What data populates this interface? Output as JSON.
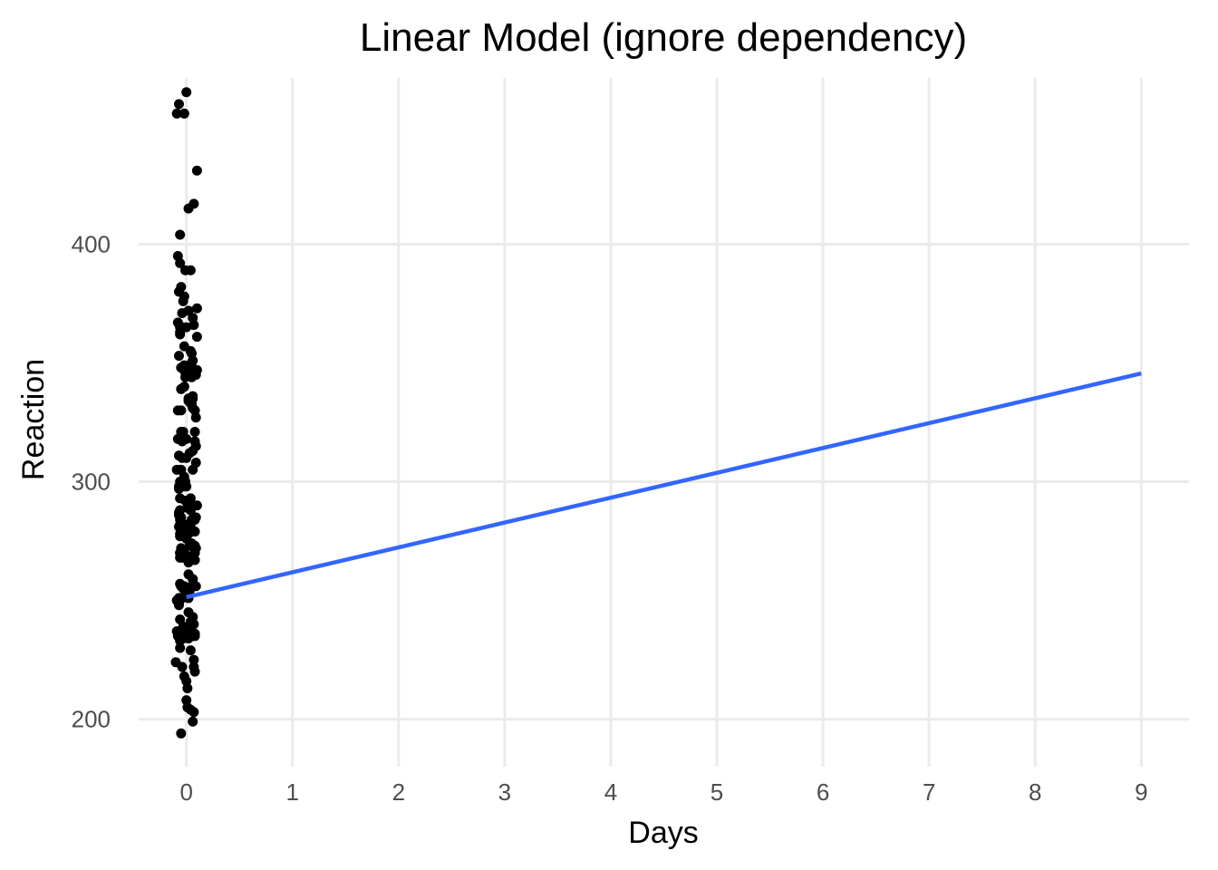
{
  "chart_data": {
    "type": "scatter",
    "title": "Linear Model (ignore dependency)",
    "xlabel": "Days",
    "ylabel": "Reaction",
    "xlim": [
      -0.45,
      9.45
    ],
    "ylim": [
      180,
      470
    ],
    "x_ticks": [
      0,
      1,
      2,
      3,
      4,
      5,
      6,
      7,
      8,
      9
    ],
    "y_ticks": [
      200,
      300,
      400
    ],
    "grid": true,
    "legend": "none",
    "colors": {
      "points": "#000000",
      "fit_line": "#3366ff",
      "grid": "#ebebeb"
    },
    "series": [
      {
        "type": "points",
        "points": [
          [
            -0.09,
            250
          ],
          [
            -0.07,
            249
          ],
          [
            -0.06,
            270
          ],
          [
            -0.08,
            235
          ],
          [
            -0.04,
            222
          ],
          [
            0.0,
            269
          ],
          [
            0.02,
            266
          ],
          [
            0.04,
            241
          ],
          [
            0.05,
            256
          ],
          [
            0.03,
            312
          ],
          [
            0.04,
            288
          ],
          [
            0.06,
            284
          ],
          [
            0.07,
            225
          ],
          [
            0.07,
            222
          ],
          [
            0.09,
            272
          ],
          [
            0.08,
            236
          ],
          [
            0.06,
            199
          ],
          [
            0.08,
            321
          ],
          [
            -0.06,
            300
          ],
          [
            -0.06,
            268
          ],
          [
            -0.05,
            285
          ],
          [
            -0.06,
            242
          ],
          [
            -0.06,
            230
          ],
          [
            -0.01,
            300
          ],
          [
            0.0,
            298
          ],
          [
            0.0,
            276
          ],
          [
            0.01,
            289
          ],
          [
            0.02,
            234
          ],
          [
            0.01,
            205
          ],
          [
            -0.05,
            194
          ],
          [
            0.05,
            273
          ],
          [
            0.08,
            273
          ],
          [
            0.06,
            243
          ],
          [
            0.06,
            259
          ],
          [
            0.05,
            274
          ],
          [
            0.06,
            313
          ],
          [
            -0.06,
            277
          ],
          [
            -0.06,
            257
          ],
          [
            -0.04,
            298
          ],
          [
            -0.04,
            251
          ],
          [
            -0.03,
            239
          ],
          [
            -0.03,
            234
          ],
          [
            -0.02,
            302
          ],
          [
            -0.02,
            256
          ],
          [
            -0.01,
            292
          ],
          [
            0.03,
            254
          ],
          [
            0.03,
            273
          ],
          [
            0.04,
            239
          ],
          [
            0.06,
            243
          ],
          [
            0.08,
            270
          ],
          [
            0.08,
            284
          ],
          [
            0.07,
            203
          ],
          [
            0.09,
            327
          ],
          [
            -0.06,
            278
          ],
          [
            -0.07,
            311
          ],
          [
            -0.06,
            282
          ],
          [
            -0.06,
            233
          ],
          [
            -0.05,
            300
          ],
          [
            -0.05,
            321
          ],
          [
            -0.05,
            319
          ],
          [
            -0.04,
            310
          ],
          [
            -0.03,
            255
          ],
          [
            -0.03,
            271
          ],
          [
            -0.01,
            346
          ],
          [
            -0.02,
            347
          ],
          [
            0.0,
            255
          ],
          [
            0.02,
            278
          ],
          [
            0.01,
            282
          ],
          [
            0.04,
            204
          ],
          [
            0.07,
            240
          ],
          [
            0.09,
            256
          ],
          [
            0.09,
            285
          ],
          [
            -0.07,
            251
          ],
          [
            -0.07,
            297
          ],
          [
            -0.07,
            287
          ],
          [
            -0.07,
            286
          ],
          [
            -0.05,
            272
          ],
          [
            -0.04,
            268
          ],
          [
            -0.03,
            269
          ],
          [
            -0.02,
            349
          ],
          [
            -0.02,
            357
          ],
          [
            0.0,
            318
          ],
          [
            0.0,
            208
          ],
          [
            0.02,
            251
          ],
          [
            0.04,
            229
          ],
          [
            0.04,
            279
          ],
          [
            0.07,
            366
          ],
          [
            0.08,
            279
          ],
          [
            0.08,
            317
          ],
          [
            0.09,
            315
          ],
          [
            -0.07,
            353
          ],
          [
            -0.08,
            330
          ],
          [
            -0.06,
            270
          ],
          [
            -0.06,
            392
          ],
          [
            -0.05,
            339
          ],
          [
            -0.04,
            317
          ],
          [
            -0.02,
            298
          ],
          [
            -0.01,
            344
          ],
          [
            0.0,
            310
          ],
          [
            0.0,
            216
          ],
          [
            0.02,
            415
          ],
          [
            0.03,
            255
          ],
          [
            0.04,
            293
          ],
          [
            0.05,
            284
          ],
          [
            0.06,
            305
          ],
          [
            0.08,
            220
          ],
          [
            0.08,
            330
          ],
          [
            -0.06,
            284
          ],
          [
            -0.07,
            380
          ],
          [
            -0.07,
            298
          ],
          [
            -0.07,
            281
          ],
          [
            -0.06,
            305
          ],
          [
            -0.06,
            288
          ],
          [
            -0.06,
            404
          ],
          [
            -0.05,
            382
          ],
          [
            -0.03,
            280
          ],
          [
            -0.02,
            455
          ],
          [
            0.01,
            213
          ],
          [
            0.02,
            245
          ],
          [
            0.04,
            281
          ],
          [
            0.04,
            355
          ],
          [
            0.05,
            333
          ],
          [
            0.06,
            335
          ],
          [
            0.06,
            259
          ],
          [
            0.08,
            235
          ],
          [
            0.1,
            290
          ],
          [
            -0.09,
            305
          ],
          [
            -0.08,
            318
          ],
          [
            -0.06,
            363
          ],
          [
            -0.05,
            256
          ],
          [
            -0.05,
            348
          ],
          [
            0.0,
            348
          ],
          [
            -0.02,
            218
          ],
          [
            0.02,
            335
          ],
          [
            0.03,
            290
          ],
          [
            0.05,
            344
          ],
          [
            0.06,
            331
          ],
          [
            0.06,
            235
          ],
          [
            0.07,
            417
          ],
          [
            0.08,
            267
          ],
          [
            0.09,
            308
          ],
          [
            0.09,
            345
          ],
          [
            0.1,
            361
          ],
          [
            0.1,
            347
          ],
          [
            -0.1,
            224
          ],
          [
            -0.09,
            455
          ],
          [
            -0.08,
            395
          ],
          [
            -0.06,
            293
          ],
          [
            -0.05,
            330
          ],
          [
            -0.05,
            305
          ],
          [
            -0.04,
            365
          ],
          [
            -0.03,
            321
          ],
          [
            -0.03,
            376
          ],
          [
            -0.02,
            340
          ],
          [
            -0.02,
            236
          ],
          [
            0.02,
            261
          ],
          [
            0.02,
            334
          ],
          [
            0.04,
            333
          ],
          [
            0.06,
            336
          ],
          [
            0.06,
            369
          ],
          [
            0.06,
            351
          ],
          [
            0.1,
            431
          ],
          [
            -0.09,
            237
          ],
          [
            -0.08,
            367
          ],
          [
            -0.07,
            459
          ],
          [
            -0.07,
            248
          ],
          [
            -0.06,
            362
          ],
          [
            -0.06,
            365
          ],
          [
            -0.04,
            371
          ],
          [
            -0.02,
            378
          ],
          [
            -0.01,
            389
          ],
          [
            -0.01,
            254
          ],
          [
            0.0,
            365
          ],
          [
            0.0,
            464
          ],
          [
            0.02,
            372
          ],
          [
            0.04,
            389
          ],
          [
            0.05,
            350
          ],
          [
            0.05,
            354
          ],
          [
            0.04,
            348
          ],
          [
            0.1,
            373
          ],
          [
            -0.06,
            236
          ],
          [
            0.05,
            237
          ]
        ]
      },
      {
        "type": "line",
        "x": [
          0,
          9
        ],
        "y": [
          251.4,
          345.6
        ]
      }
    ]
  }
}
